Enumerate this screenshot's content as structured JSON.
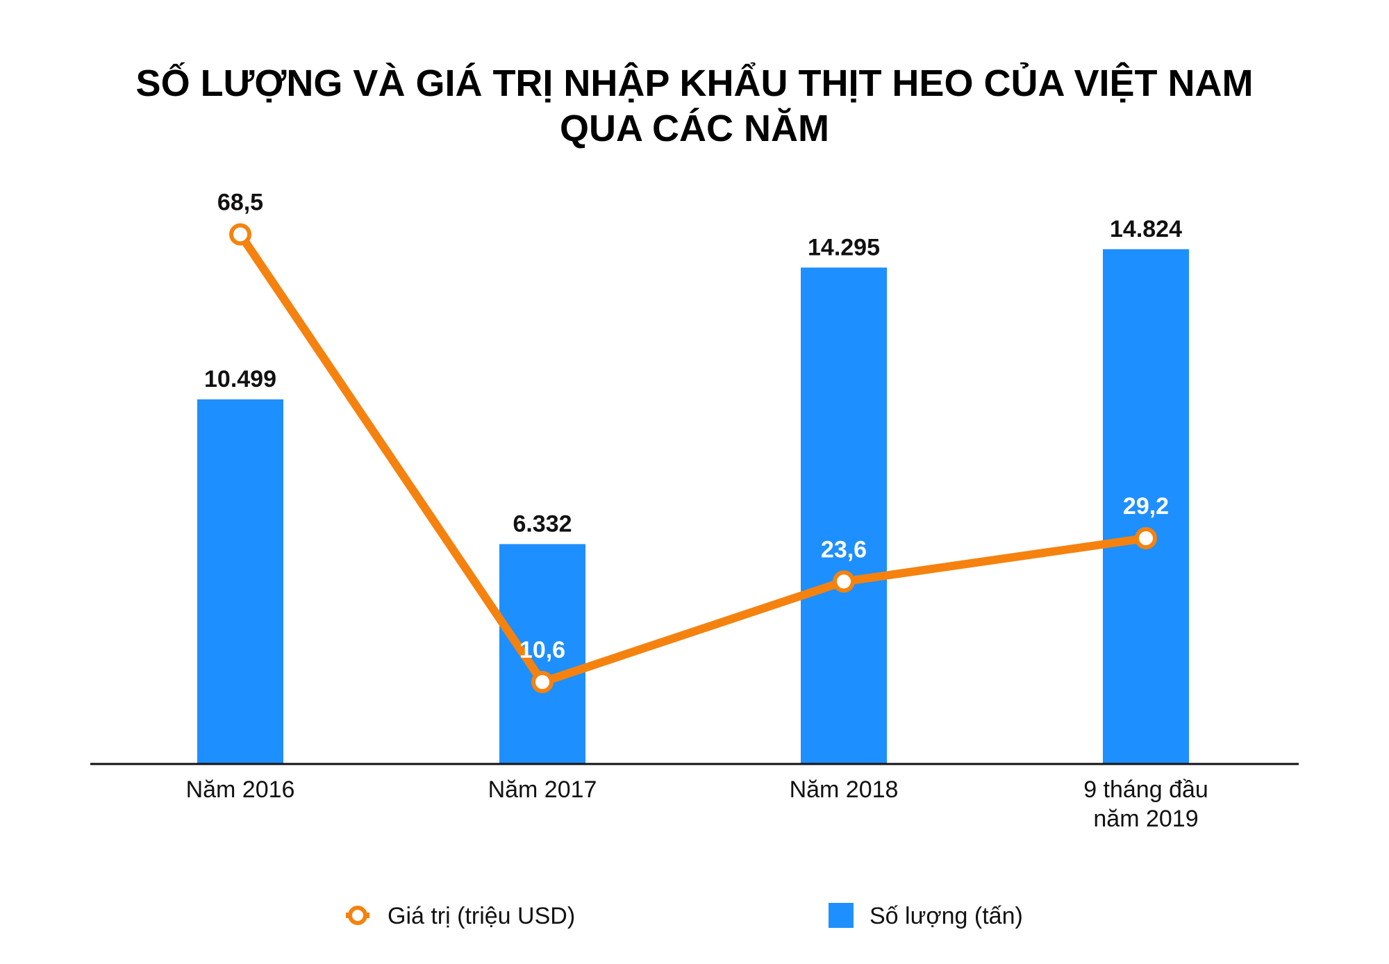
{
  "chart_data": {
    "type": "bar",
    "title": "SỐ LƯỢNG VÀ GIÁ TRỊ NHẬP KHẨU THỊT HEO CỦA VIỆT NAM",
    "subtitle": "QUA CÁC NĂM",
    "categories": [
      [
        "Năm 2016"
      ],
      [
        "Năm 2017"
      ],
      [
        "Năm 2018"
      ],
      [
        "9 tháng đầu",
        "năm 2019"
      ]
    ],
    "series": [
      {
        "name": "Số lượng (tấn)",
        "type": "bar",
        "values": [
          10499,
          6332,
          14295,
          14824
        ],
        "labels": [
          "10.499",
          "6.332",
          "14.295",
          "14.824"
        ],
        "color": "#1e8ffe"
      },
      {
        "name": "Giá trị (triệu USD)",
        "type": "line",
        "values": [
          68.5,
          10.6,
          23.6,
          29.2
        ],
        "labels": [
          "68,5",
          "10,6",
          "23,6",
          "29,2"
        ],
        "color": "#f5820f",
        "label_colors": [
          "#111111",
          "#ffffff",
          "#ffffff",
          "#ffffff"
        ]
      }
    ],
    "bar_axis_range": [
      0,
      17700
    ],
    "line_axis_range": [
      0,
      79.5
    ],
    "grid": false,
    "legend_position": "bottom"
  }
}
